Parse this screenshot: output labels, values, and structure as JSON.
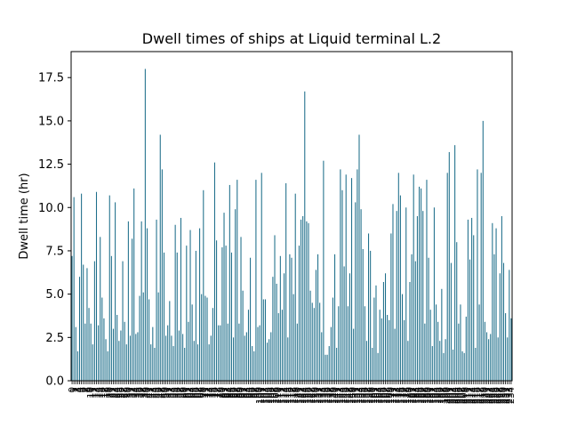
{
  "chart_data": {
    "type": "bar",
    "title": "Dwell times of ships at Liquid terminal L.2",
    "xlabel": "",
    "ylabel": "Dwell time (hr)",
    "ylim": [
      0,
      19
    ],
    "yticks": [
      0.0,
      2.5,
      5.0,
      7.5,
      10.0,
      12.5,
      15.0,
      17.5
    ],
    "ytick_labels": [
      "0.0",
      "2.5",
      "5.0",
      "7.5",
      "10.0",
      "12.5",
      "15.0",
      "17.5"
    ],
    "grid": false,
    "legend": "none",
    "bar_color": "#1f6f8b",
    "values": [
      7.2,
      10.6,
      3.1,
      1.7,
      6.0,
      10.8,
      6.7,
      3.3,
      6.5,
      4.2,
      3.3,
      2.1,
      6.9,
      10.9,
      3.2,
      8.3,
      4.8,
      3.6,
      2.4,
      1.7,
      10.7,
      7.2,
      3.0,
      10.3,
      3.8,
      2.3,
      2.9,
      6.9,
      3.4,
      2.1,
      9.2,
      2.6,
      8.2,
      11.1,
      2.7,
      2.8,
      4.9,
      9.2,
      5.1,
      18.0,
      8.8,
      4.7,
      2.1,
      3.1,
      1.9,
      9.3,
      5.1,
      14.2,
      12.2,
      7.4,
      2.6,
      3.2,
      4.6,
      2.6,
      2.0,
      9.0,
      7.4,
      2.9,
      9.4,
      2.7,
      1.9,
      7.8,
      3.4,
      8.7,
      4.4,
      2.3,
      7.5,
      2.1,
      8.8,
      5.0,
      11.0,
      4.9,
      4.8,
      2.1,
      2.6,
      4.2,
      12.6,
      8.1,
      3.2,
      3.2,
      7.7,
      9.7,
      7.8,
      3.3,
      11.3,
      7.4,
      2.5,
      9.9,
      11.6,
      3.3,
      8.3,
      5.2,
      2.6,
      2.8,
      4.1,
      7.1,
      2.0,
      1.7,
      11.6,
      3.1,
      3.2,
      12.0,
      4.7,
      4.7,
      2.2,
      2.4,
      2.8,
      6.0,
      8.4,
      5.6,
      3.9,
      7.2,
      4.1,
      6.2,
      11.4,
      2.5,
      7.3,
      7.1,
      5.0,
      10.8,
      3.3,
      7.8,
      9.3,
      9.5,
      16.7,
      9.2,
      9.1,
      5.2,
      4.5,
      4.2,
      6.4,
      7.3,
      4.5,
      2.8,
      12.7,
      1.5,
      1.5,
      2.0,
      3.1,
      4.8,
      7.3,
      1.9,
      4.3,
      12.2,
      11.0,
      6.6,
      11.9,
      4.3,
      6.2,
      11.7,
      3.0,
      10.3,
      12.2,
      14.2,
      9.9,
      7.6,
      4.3,
      2.3,
      8.5,
      7.5,
      1.9,
      4.8,
      5.5,
      1.6,
      4.1,
      3.6,
      5.7,
      6.2,
      3.8,
      3.5,
      8.5,
      10.2,
      3.0,
      9.8,
      12.0,
      10.7,
      5.0,
      3.5,
      10.0,
      2.3,
      5.7,
      7.3,
      11.9,
      6.9,
      9.5,
      11.2,
      11.1,
      9.8,
      3.3,
      11.6,
      7.1,
      4.1,
      2.0,
      10.0,
      4.4,
      3.4,
      2.3,
      5.3,
      1.6,
      2.4,
      12.0,
      13.2,
      6.8,
      1.8,
      13.6,
      8.0,
      3.3,
      4.4,
      1.7,
      1.6,
      3.7,
      9.3,
      7.0,
      9.4,
      8.4,
      1.9,
      12.2,
      4.4,
      12.0,
      15.0,
      3.4,
      2.8,
      2.4,
      2.7,
      9.1,
      7.3,
      8.8,
      2.5,
      6.2,
      9.5,
      6.8,
      3.9,
      2.5,
      6.4,
      3.6
    ]
  }
}
